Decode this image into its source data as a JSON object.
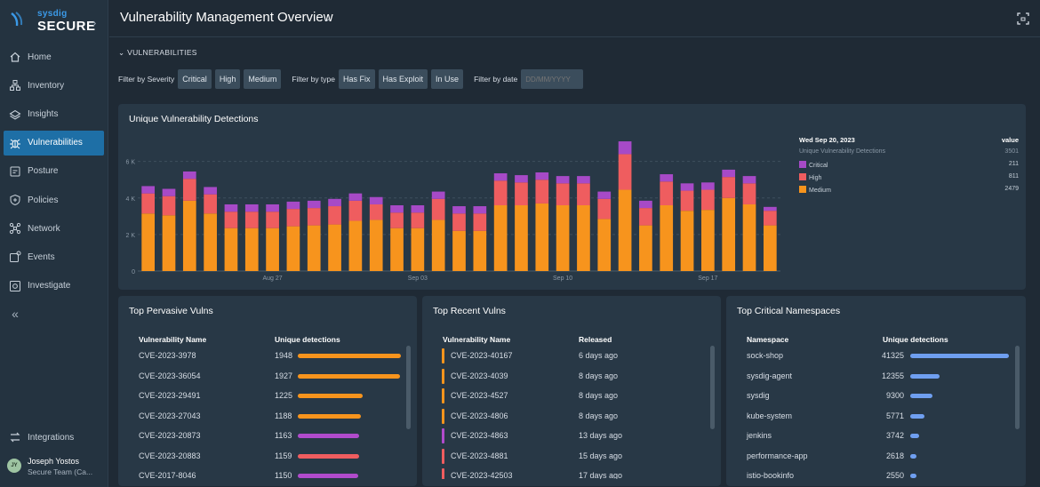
{
  "brand": {
    "small": "sysdig",
    "name": "SECURE"
  },
  "sidebar": {
    "items": [
      {
        "label": "Home",
        "icon": "home-icon"
      },
      {
        "label": "Inventory",
        "icon": "inventory-icon"
      },
      {
        "label": "Insights",
        "icon": "insights-icon"
      },
      {
        "label": "Vulnerabilities",
        "icon": "bug-icon"
      },
      {
        "label": "Posture",
        "icon": "posture-icon"
      },
      {
        "label": "Policies",
        "icon": "shield-icon"
      },
      {
        "label": "Network",
        "icon": "network-icon"
      },
      {
        "label": "Events",
        "icon": "events-icon"
      },
      {
        "label": "Investigate",
        "icon": "investigate-icon"
      }
    ],
    "collapse_glyph": "«",
    "integrations": "Integrations",
    "user": {
      "initials": "JY",
      "name": "Joseph Yostos",
      "team": "Secure Team (Ca..."
    }
  },
  "header": {
    "title": "Vulnerability Management Overview"
  },
  "section": {
    "title": "VULNERABILITIES"
  },
  "filters": {
    "severity_label": "Filter by Severity",
    "severity": [
      "Critical",
      "High",
      "Medium"
    ],
    "type_label": "Filter by type",
    "type": [
      "Has Fix",
      "Has Exploit",
      "In Use"
    ],
    "date_label": "Filter by date",
    "date_placeholder": "DD/MM/YYYY"
  },
  "chart_panel": {
    "title": "Unique Vulnerability Detections"
  },
  "chart_data": {
    "type": "bar",
    "stacked": true,
    "title": "Unique Vulnerability Detections",
    "x_tick_labels": [
      "Aug 27",
      "Sep 03",
      "Sep 10",
      "Sep 17"
    ],
    "x_tick_index": [
      6,
      13,
      20,
      27
    ],
    "y_ticks": [
      0,
      2000,
      4000,
      6000
    ],
    "y_tick_labels": [
      "0",
      "2 K",
      "4 K",
      "6 K"
    ],
    "ylim": [
      0,
      7200
    ],
    "grid": true,
    "colors": {
      "Medium": "#f7941d",
      "High": "#ef5d5f",
      "Critical": "#a74ac7"
    },
    "series": [
      {
        "name": "Medium",
        "values": [
          3150,
          3050,
          3850,
          3150,
          2350,
          2350,
          2350,
          2450,
          2500,
          2550,
          2750,
          2800,
          2350,
          2350,
          2800,
          2200,
          2200,
          3600,
          3600,
          3700,
          3600,
          3600,
          2850,
          4450,
          2500,
          3600,
          3300,
          3350,
          4000,
          3650,
          2500
        ]
      },
      {
        "name": "High",
        "values": [
          1100,
          1050,
          1200,
          1050,
          900,
          900,
          900,
          950,
          950,
          1000,
          1100,
          850,
          850,
          850,
          1150,
          950,
          950,
          1350,
          1250,
          1300,
          1200,
          1200,
          1100,
          1950,
          950,
          1300,
          1100,
          1100,
          1150,
          1150,
          800
        ]
      },
      {
        "name": "Critical",
        "values": [
          400,
          400,
          400,
          400,
          400,
          400,
          400,
          400,
          400,
          400,
          400,
          400,
          400,
          400,
          400,
          400,
          400,
          400,
          400,
          400,
          400,
          400,
          400,
          700,
          400,
          400,
          400,
          400,
          400,
          400,
          211
        ]
      }
    ],
    "legend": {
      "date": "Wed Sep 20, 2023",
      "value_header": "value",
      "total_label": "Unique Vulnerability Detections",
      "total": "3501",
      "items": [
        {
          "name": "Critical",
          "value": "211"
        },
        {
          "name": "High",
          "value": "811"
        },
        {
          "name": "Medium",
          "value": "2479"
        }
      ]
    }
  },
  "pervasive": {
    "title": "Top Pervasive Vulns",
    "col1": "Vulnerability Name",
    "col2": "Unique detections",
    "rows": [
      {
        "name": "CVE-2023-3978",
        "value": "1948",
        "severity": "Medium",
        "color": "#f7941d"
      },
      {
        "name": "CVE-2023-36054",
        "value": "1927",
        "severity": "Medium",
        "color": "#f7941d"
      },
      {
        "name": "CVE-2023-29491",
        "value": "1225",
        "severity": "Medium",
        "color": "#f7941d"
      },
      {
        "name": "CVE-2023-27043",
        "value": "1188",
        "severity": "Medium",
        "color": "#f7941d"
      },
      {
        "name": "CVE-2023-20873",
        "value": "1163",
        "severity": "Critical",
        "color": "#b14bcc"
      },
      {
        "name": "CVE-2023-20883",
        "value": "1159",
        "severity": "High",
        "color": "#ef5d5f"
      },
      {
        "name": "CVE-2017-8046",
        "value": "1150",
        "severity": "Critical",
        "color": "#b14bcc"
      }
    ]
  },
  "recent": {
    "title": "Top Recent Vulns",
    "col1": "Vulnerability Name",
    "col2": "Released",
    "rows": [
      {
        "name": "CVE-2023-40167",
        "released": "6 days ago",
        "color": "#f7941d"
      },
      {
        "name": "CVE-2023-4039",
        "released": "8 days ago",
        "color": "#f7941d"
      },
      {
        "name": "CVE-2023-4527",
        "released": "8 days ago",
        "color": "#f7941d"
      },
      {
        "name": "CVE-2023-4806",
        "released": "8 days ago",
        "color": "#f7941d"
      },
      {
        "name": "CVE-2023-4863",
        "released": "13 days ago",
        "color": "#b14bcc"
      },
      {
        "name": "CVE-2023-4881",
        "released": "15 days ago",
        "color": "#ef5d5f"
      },
      {
        "name": "CVE-2023-42503",
        "released": "17 days ago",
        "color": "#ef5d5f"
      }
    ]
  },
  "namespaces": {
    "title": "Top Critical Namespaces",
    "col1": "Namespace",
    "col2": "Unique detections",
    "bar_color": "#6f9ff0",
    "rows": [
      {
        "name": "sock-shop",
        "value": "41325"
      },
      {
        "name": "sysdig-agent",
        "value": "12355"
      },
      {
        "name": "sysdig",
        "value": "9300"
      },
      {
        "name": "kube-system",
        "value": "5771"
      },
      {
        "name": "jenkins",
        "value": "3742"
      },
      {
        "name": "performance-app",
        "value": "2618"
      },
      {
        "name": "istio-bookinfo",
        "value": "2550"
      }
    ]
  }
}
